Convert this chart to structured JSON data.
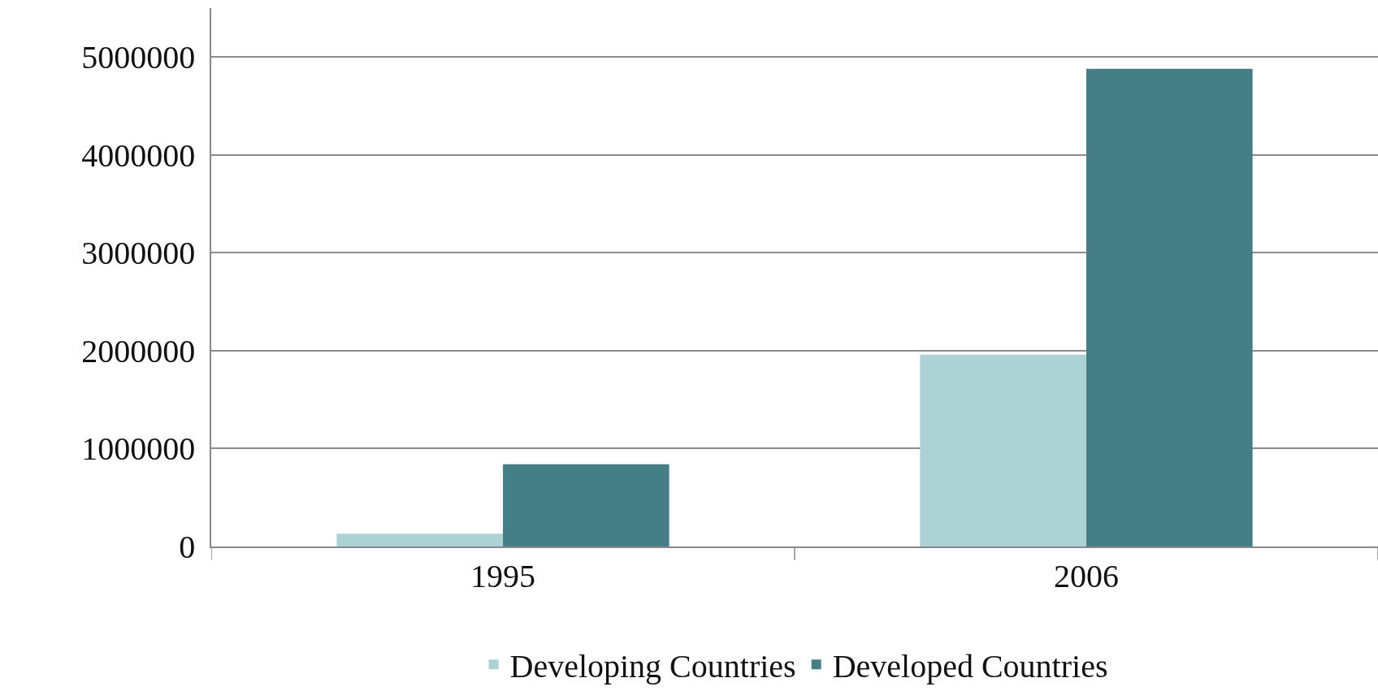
{
  "chart_data": {
    "type": "bar",
    "categories": [
      "1995",
      "2006"
    ],
    "series": [
      {
        "name": "Developing Countries",
        "color": "#acd2d5",
        "values": [
          130000,
          1960000
        ]
      },
      {
        "name": "Developed Countries",
        "color": "#457f85",
        "values": [
          840000,
          4880000
        ]
      }
    ],
    "ylim": [
      0,
      5500000
    ],
    "yticks": [
      0,
      1000000,
      2000000,
      3000000,
      4000000,
      5000000
    ],
    "grid": "y",
    "legend": "bottom"
  }
}
